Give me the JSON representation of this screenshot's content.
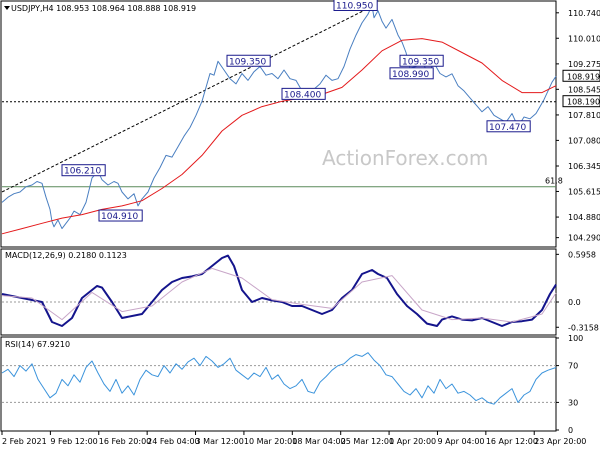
{
  "chart_data": [
    {
      "type": "line",
      "title": "USDJPY,H4 108.953 108.964 108.888 108.919",
      "watermark": "ActionForex.com",
      "ylim": [
        104.05,
        111.05
      ],
      "y_ticks": [
        "110.740",
        "110.010",
        "109.275",
        "108.545",
        "107.810",
        "107.080",
        "106.345",
        "105.615",
        "104.880",
        "104.290"
      ],
      "y_tick_values": [
        110.74,
        110.01,
        109.275,
        108.545,
        107.81,
        107.08,
        106.345,
        105.615,
        104.88,
        104.29
      ],
      "x_ticks": [
        "2 Feb 2021",
        "9 Feb 12:00",
        "16 Feb 20:00",
        "24 Feb 04:00",
        "3 Mar 12:00",
        "10 Mar 20:00",
        "18 Mar 04:00",
        "25 Mar 12:00",
        "1 Apr 20:00",
        "9 Apr 04:00",
        "16 Apr 12:00",
        "23 Apr 20:00"
      ],
      "current_price_label": "108.919",
      "current_price": 108.919,
      "hline_label": "108.190",
      "hline_value": 108.19,
      "fib_label": "61.8",
      "fib_value": 105.75,
      "price_annotations": [
        {
          "label": "110.950",
          "value": 110.95
        },
        {
          "label": "109.350",
          "value": 109.35
        },
        {
          "label": "108.400",
          "value": 108.4
        },
        {
          "label": "106.210",
          "value": 106.21
        },
        {
          "label": "104.910",
          "value": 104.91
        },
        {
          "label": "109.350",
          "value": 109.35
        },
        {
          "label": "108.990",
          "value": 108.99
        },
        {
          "label": "107.470",
          "value": 107.47
        }
      ],
      "series": [
        {
          "name": "",
          "color": "#4a7fc1",
          "x": [
            0,
            6,
            12,
            18,
            24,
            30,
            35,
            40,
            44,
            48,
            50,
            52,
            56,
            60,
            64,
            68,
            72,
            78,
            84,
            90,
            96,
            100,
            106,
            112,
            116,
            120,
            126,
            132,
            136,
            140,
            146,
            152,
            158,
            164,
            170,
            176,
            182,
            188,
            194,
            200,
            204,
            208,
            212,
            216,
            222,
            228,
            234,
            240,
            246,
            252,
            258,
            264,
            270,
            276,
            282,
            288,
            294,
            300,
            306,
            312,
            318,
            324,
            330,
            336,
            342,
            348,
            354,
            360,
            366,
            370,
            372,
            376,
            380,
            384,
            390,
            396,
            400,
            404,
            408,
            414,
            420,
            426,
            432,
            438,
            444,
            450,
            456,
            462,
            468,
            474,
            480,
            486,
            492,
            498,
            504,
            510,
            516,
            522,
            528,
            534,
            538,
            542,
            546,
            550,
            554
          ],
          "values": [
            105.3,
            105.45,
            105.55,
            105.6,
            105.75,
            105.8,
            105.9,
            105.85,
            105.45,
            105.1,
            104.75,
            104.6,
            104.8,
            104.55,
            104.7,
            104.85,
            105.05,
            104.95,
            105.3,
            106.0,
            106.2,
            105.95,
            105.8,
            105.9,
            105.85,
            105.6,
            105.4,
            105.55,
            105.2,
            105.4,
            105.6,
            106.0,
            106.3,
            106.65,
            106.6,
            106.9,
            107.2,
            107.45,
            107.8,
            108.2,
            108.6,
            109.0,
            108.95,
            109.35,
            109.1,
            108.85,
            108.7,
            109.0,
            108.8,
            109.05,
            109.2,
            108.95,
            109.0,
            108.85,
            109.1,
            108.85,
            108.8,
            108.5,
            108.4,
            108.55,
            108.7,
            108.95,
            108.8,
            108.85,
            109.2,
            109.7,
            110.1,
            110.45,
            110.7,
            110.95,
            110.6,
            110.8,
            110.5,
            110.3,
            110.55,
            110.1,
            109.9,
            109.6,
            109.15,
            109.2,
            109.35,
            109.0,
            109.3,
            109.0,
            108.9,
            108.99,
            108.65,
            108.5,
            108.3,
            108.1,
            107.9,
            108.05,
            107.8,
            107.7,
            107.6,
            107.85,
            107.47,
            107.75,
            107.7,
            107.85,
            108.05,
            108.25,
            108.5,
            108.75,
            108.919
          ]
        },
        {
          "name": "",
          "color": "#e41a1c",
          "x": [
            0,
            20,
            40,
            60,
            80,
            100,
            120,
            140,
            160,
            180,
            200,
            220,
            240,
            260,
            280,
            300,
            320,
            340,
            360,
            380,
            400,
            420,
            440,
            460,
            480,
            500,
            520,
            540,
            554
          ],
          "values": [
            104.4,
            104.55,
            104.7,
            104.85,
            104.95,
            105.1,
            105.2,
            105.35,
            105.7,
            106.1,
            106.65,
            107.35,
            107.8,
            108.05,
            108.2,
            108.3,
            108.4,
            108.6,
            109.1,
            109.65,
            109.95,
            110.0,
            109.9,
            109.6,
            109.3,
            108.8,
            108.45,
            108.45,
            108.65
          ]
        }
      ]
    },
    {
      "type": "line",
      "title": "MACD(12,26,9) 0.2180 0.1123",
      "ylim": [
        -0.4,
        0.65
      ],
      "y_ticks": [
        "0.5958",
        "0.0",
        "-0.3158"
      ],
      "y_tick_values": [
        0.5958,
        0.0,
        -0.3158
      ],
      "series": [
        {
          "name": "",
          "color": "#14148c",
          "x": [
            0,
            20,
            40,
            50,
            60,
            70,
            80,
            95,
            100,
            110,
            120,
            140,
            150,
            160,
            170,
            180,
            190,
            200,
            210,
            220,
            226,
            232,
            240,
            250,
            260,
            270,
            280,
            290,
            300,
            310,
            320,
            330,
            340,
            350,
            360,
            370,
            376,
            385,
            395,
            405,
            415,
            425,
            435,
            440,
            450,
            460,
            470,
            480,
            490,
            500,
            510,
            520,
            530,
            540,
            548,
            554
          ],
          "values": [
            0.1,
            0.05,
            0.0,
            -0.25,
            -0.3,
            -0.2,
            0.05,
            0.2,
            0.18,
            0.0,
            -0.2,
            -0.15,
            0.0,
            0.15,
            0.25,
            0.3,
            0.32,
            0.35,
            0.45,
            0.55,
            0.58,
            0.45,
            0.15,
            0.0,
            0.05,
            0.02,
            0.0,
            -0.05,
            -0.05,
            -0.1,
            -0.15,
            -0.1,
            0.05,
            0.15,
            0.35,
            0.4,
            0.35,
            0.3,
            0.1,
            -0.05,
            -0.15,
            -0.27,
            -0.3,
            -0.22,
            -0.18,
            -0.22,
            -0.23,
            -0.2,
            -0.25,
            -0.3,
            -0.25,
            -0.24,
            -0.22,
            -0.1,
            0.1,
            0.218
          ]
        },
        {
          "name": "",
          "color": "#c8a6c8",
          "x": [
            0,
            30,
            60,
            90,
            120,
            150,
            180,
            210,
            240,
            270,
            300,
            330,
            360,
            390,
            420,
            450,
            480,
            510,
            540,
            554
          ],
          "values": [
            0.08,
            0.05,
            -0.22,
            0.12,
            -0.12,
            -0.05,
            0.25,
            0.42,
            0.3,
            0.03,
            -0.03,
            -0.08,
            0.25,
            0.33,
            -0.1,
            -0.22,
            -0.2,
            -0.25,
            -0.15,
            0.1123
          ]
        }
      ]
    },
    {
      "type": "line",
      "title": "RSI(14) 67.9210",
      "ylim": [
        0,
        100
      ],
      "y_ticks": [
        "100",
        "70",
        "30",
        "0"
      ],
      "y_tick_values": [
        100,
        70,
        30,
        0
      ],
      "series": [
        {
          "name": "",
          "color": "#3c94dc",
          "x": [
            0,
            6,
            12,
            18,
            24,
            30,
            36,
            42,
            48,
            54,
            60,
            66,
            72,
            78,
            84,
            90,
            96,
            102,
            108,
            114,
            120,
            126,
            132,
            138,
            144,
            150,
            156,
            162,
            168,
            174,
            180,
            186,
            192,
            198,
            204,
            210,
            216,
            222,
            228,
            234,
            240,
            246,
            252,
            258,
            264,
            270,
            276,
            282,
            288,
            294,
            300,
            306,
            312,
            318,
            324,
            330,
            336,
            342,
            348,
            354,
            360,
            366,
            372,
            378,
            384,
            390,
            396,
            402,
            408,
            414,
            420,
            426,
            432,
            438,
            444,
            450,
            456,
            462,
            468,
            474,
            480,
            486,
            492,
            498,
            504,
            510,
            516,
            522,
            528,
            534,
            540,
            546,
            554
          ],
          "values": [
            62,
            66,
            58,
            70,
            64,
            72,
            55,
            45,
            35,
            40,
            55,
            48,
            60,
            52,
            68,
            75,
            62,
            50,
            42,
            55,
            40,
            48,
            38,
            55,
            65,
            60,
            58,
            70,
            62,
            72,
            66,
            74,
            78,
            70,
            80,
            75,
            68,
            72,
            78,
            65,
            60,
            55,
            62,
            58,
            68,
            55,
            60,
            50,
            45,
            48,
            55,
            42,
            40,
            52,
            58,
            65,
            70,
            72,
            78,
            82,
            80,
            84,
            76,
            70,
            60,
            58,
            50,
            42,
            38,
            45,
            35,
            48,
            40,
            55,
            45,
            50,
            40,
            42,
            38,
            32,
            35,
            30,
            28,
            35,
            40,
            45,
            30,
            38,
            42,
            55,
            62,
            65,
            67.921
          ]
        }
      ]
    }
  ]
}
